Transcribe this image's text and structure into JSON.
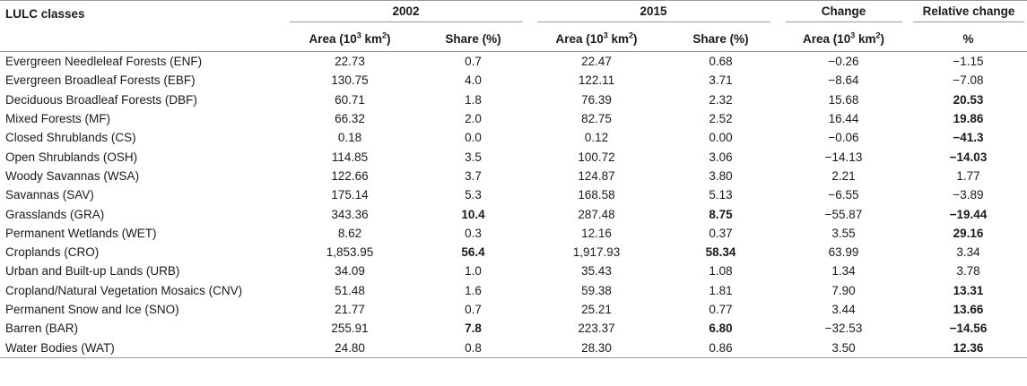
{
  "header": {
    "class_label": "LULC classes",
    "year1": "2002",
    "year2": "2015",
    "change": "Change",
    "relative_change": "Relative change",
    "area_prefix": "Area (10",
    "area_exp": "3",
    "area_suffix": " km",
    "area_sq": "2",
    "area_close": ")",
    "share": "Share (%)",
    "percent": "%"
  },
  "rows": [
    {
      "name": "Evergreen Needleleaf Forests (ENF)",
      "a2002": "22.73",
      "s2002": "0.7",
      "a2015": "22.47",
      "s2015": "0.68",
      "chg": "−0.26",
      "rel": "−1.15"
    },
    {
      "name": "Evergreen Broadleaf Forests (EBF)",
      "a2002": "130.75",
      "s2002": "4.0",
      "a2015": "122.11",
      "s2015": "3.71",
      "chg": "−8.64",
      "rel": "−7.08"
    },
    {
      "name": "Deciduous Broadleaf Forests (DBF)",
      "a2002": "60.71",
      "s2002": "1.8",
      "a2015": "76.39",
      "s2015": "2.32",
      "chg": "15.68",
      "rel": "20.53"
    },
    {
      "name": "Mixed Forests (MF)",
      "a2002": "66.32",
      "s2002": "2.0",
      "a2015": "82.75",
      "s2015": "2.52",
      "chg": "16.44",
      "rel": "19.86"
    },
    {
      "name": "Closed Shrublands (CS)",
      "a2002": "0.18",
      "s2002": "0.0",
      "a2015": "0.12",
      "s2015": "0.00",
      "chg": "−0.06",
      "rel": "−41.3"
    },
    {
      "name": "Open Shrublands (OSH)",
      "a2002": "114.85",
      "s2002": "3.5",
      "a2015": "100.72",
      "s2015": "3.06",
      "chg": "−14.13",
      "rel": "−14.03"
    },
    {
      "name": "Woody Savannas (WSA)",
      "a2002": "122.66",
      "s2002": "3.7",
      "a2015": "124.87",
      "s2015": "3.80",
      "chg": "2.21",
      "rel": "1.77"
    },
    {
      "name": "Savannas (SAV)",
      "a2002": "175.14",
      "s2002": "5.3",
      "a2015": "168.58",
      "s2015": "5.13",
      "chg": "−6.55",
      "rel": "−3.89"
    },
    {
      "name": "Grasslands (GRA)",
      "a2002": "343.36",
      "s2002": "10.4",
      "a2015": "287.48",
      "s2015": "8.75",
      "chg": "−55.87",
      "rel": "−19.44"
    },
    {
      "name": "Permanent Wetlands (WET)",
      "a2002": "8.62",
      "s2002": "0.3",
      "a2015": "12.16",
      "s2015": "0.37",
      "chg": "3.55",
      "rel": "29.16"
    },
    {
      "name": "Croplands (CRO)",
      "a2002": "1,853.95",
      "s2002": "56.4",
      "a2015": "1,917.93",
      "s2015": "58.34",
      "chg": "63.99",
      "rel": "3.34"
    },
    {
      "name": "Urban and Built-up Lands (URB)",
      "a2002": "34.09",
      "s2002": "1.0",
      "a2015": "35.43",
      "s2015": "1.08",
      "chg": "1.34",
      "rel": "3.78"
    },
    {
      "name": "Cropland/Natural Vegetation Mosaics (CNV)",
      "a2002": "51.48",
      "s2002": "1.6",
      "a2015": "59.38",
      "s2015": "1.81",
      "chg": "7.90",
      "rel": "13.31"
    },
    {
      "name": "Permanent Snow and Ice (SNO)",
      "a2002": "21.77",
      "s2002": "0.7",
      "a2015": "25.21",
      "s2015": "0.77",
      "chg": "3.44",
      "rel": "13.66"
    },
    {
      "name": "Barren (BAR)",
      "a2002": "255.91",
      "s2002": "7.8",
      "a2015": "223.37",
      "s2015": "6.80",
      "chg": "−32.53",
      "rel": "−14.56"
    },
    {
      "name": "Water Bodies (WAT)",
      "a2002": "24.80",
      "s2002": "0.8",
      "a2015": "28.30",
      "s2015": "0.86",
      "chg": "3.50",
      "rel": "12.36"
    }
  ],
  "bold_cells": {
    "s2002": [
      8,
      10,
      14
    ],
    "s2015": [
      8,
      10,
      14
    ],
    "rel": [
      2,
      3,
      4,
      5,
      8,
      9,
      12,
      13,
      14,
      15
    ]
  }
}
